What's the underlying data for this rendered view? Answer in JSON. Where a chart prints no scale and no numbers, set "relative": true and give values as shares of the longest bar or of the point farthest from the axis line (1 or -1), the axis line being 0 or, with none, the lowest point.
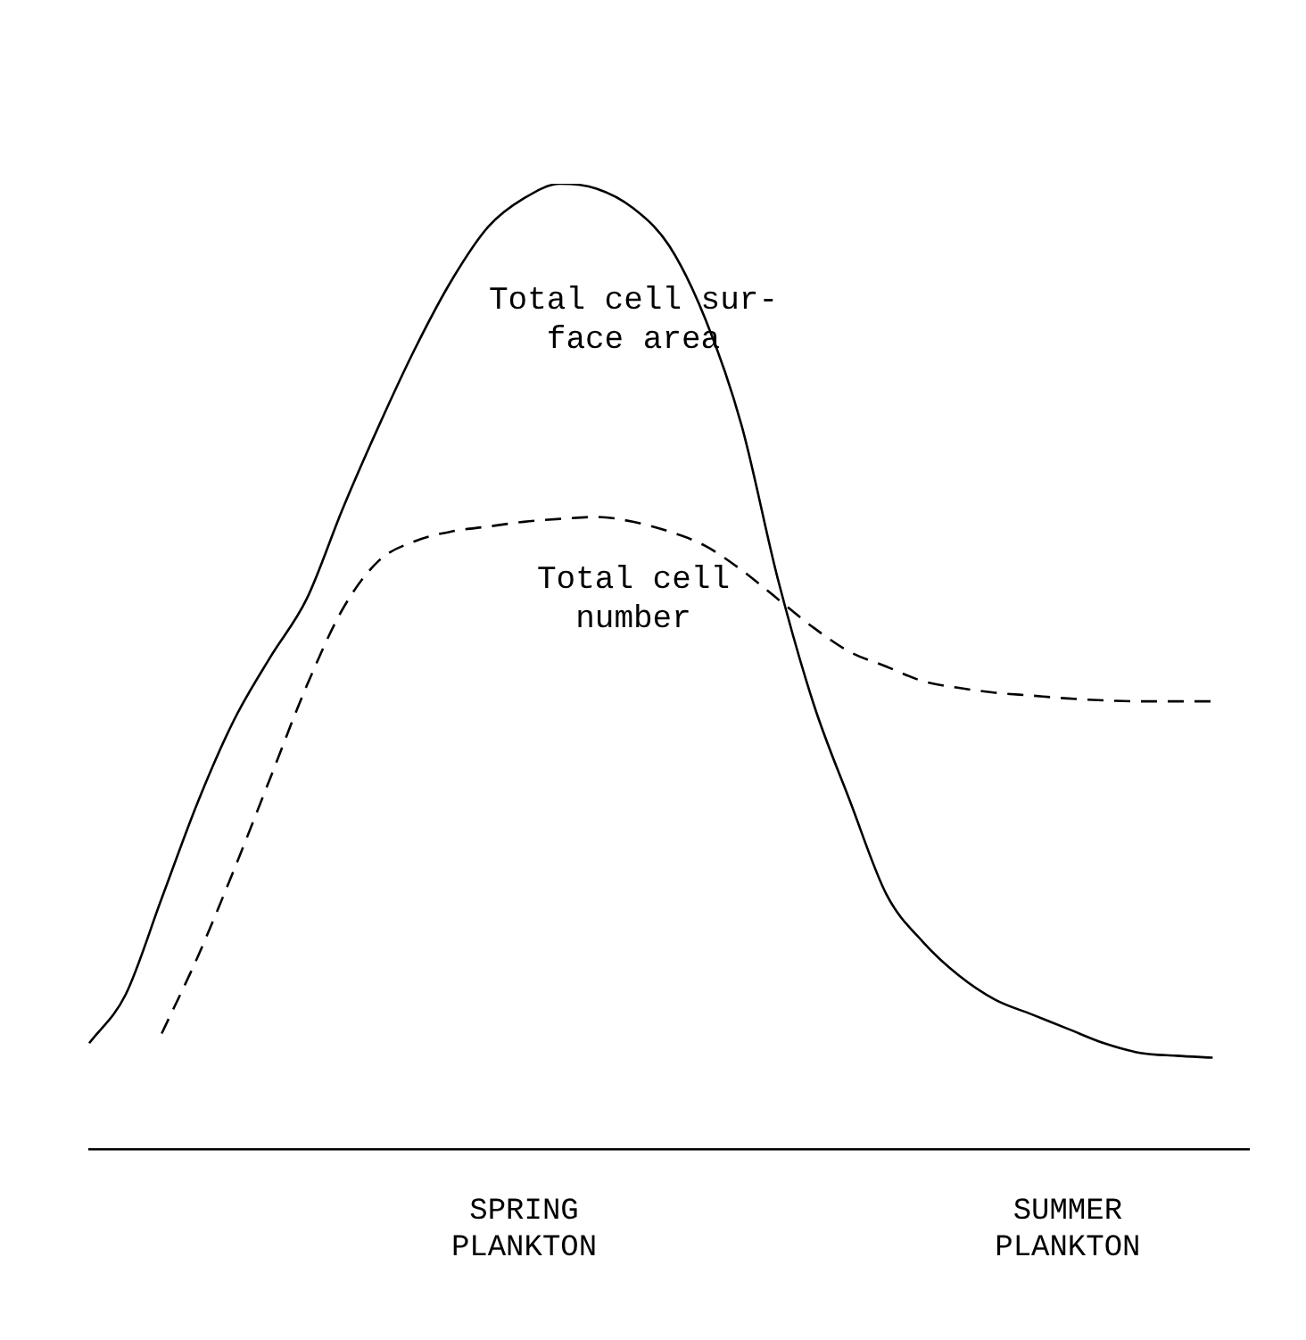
{
  "chart_data": {
    "type": "line",
    "relative": true,
    "legend": false,
    "grid": false,
    "marker": "none",
    "categories": [
      null,
      null,
      null,
      null,
      null,
      null,
      null,
      null,
      null,
      null,
      null,
      null,
      "SPRING PLANKTON",
      null,
      null,
      null,
      null,
      null,
      null,
      null,
      null,
      null,
      null,
      null,
      null,
      null,
      null,
      "SUMMER PLANKTON",
      null,
      null,
      null,
      null,
      null
    ],
    "series": [
      {
        "name": "Total cell sur-\nface area",
        "color": "#000000",
        "line_style": "solid",
        "values": [
          0.11,
          0.16,
          0.26,
          0.36,
          0.445,
          0.51,
          0.57,
          0.664,
          0.75,
          0.83,
          0.9,
          0.955,
          0.985,
          1,
          0.995,
          0.975,
          0.936,
          0.86,
          0.75,
          0.591,
          0.46,
          0.36,
          0.264,
          0.215,
          0.18,
          0.155,
          0.14,
          0.125,
          0.11,
          0.1,
          0.097,
          0.095,
          null
        ]
      },
      {
        "name": "Total cell\nnumber",
        "color": "#000000",
        "line_style": "dashed",
        "values": [
          null,
          null,
          0.12,
          0.2,
          0.29,
          0.385,
          0.48,
          0.56,
          0.61,
          0.63,
          0.64,
          0.645,
          0.65,
          0.653,
          0.655,
          0.65,
          0.64,
          0.625,
          0.6,
          0.57,
          0.54,
          0.515,
          0.5,
          0.485,
          0.478,
          0.473,
          0.47,
          0.467,
          0.465,
          0.464,
          0.464,
          0.464,
          null
        ]
      }
    ]
  }
}
